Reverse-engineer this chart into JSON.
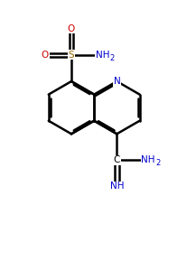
{
  "bg_color": "#ffffff",
  "bond_color": "#000000",
  "bond_width": 1.8,
  "atom_N_color": "#0000cc",
  "atom_S_color": "#996600",
  "atom_O_color": "#cc0000",
  "figsize": [
    2.17,
    2.89
  ],
  "dpi": 100,
  "xlim": [
    0,
    10
  ],
  "ylim": [
    0,
    13.3
  ],
  "bl": 1.35
}
